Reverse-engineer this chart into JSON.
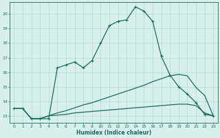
{
  "xlabel": "Humidex (Indice chaleur)",
  "bg_color": "#d8f0ec",
  "grid_color": "#b8ddd8",
  "line_color": "#1a6b5a",
  "xlim": [
    -0.5,
    23.5
  ],
  "ylim": [
    12.5,
    20.8
  ],
  "yticks": [
    13,
    14,
    15,
    16,
    17,
    18,
    19,
    20
  ],
  "xticks": [
    0,
    1,
    2,
    3,
    4,
    5,
    6,
    7,
    8,
    9,
    10,
    11,
    12,
    13,
    14,
    15,
    16,
    17,
    18,
    19,
    20,
    21,
    22,
    23
  ],
  "curve1_x": [
    0,
    1,
    2,
    3,
    4,
    5,
    6,
    7,
    8,
    9,
    10,
    11,
    12,
    13,
    14,
    15,
    16,
    17,
    18,
    19,
    20,
    21,
    22,
    23
  ],
  "curve1_y": [
    13.5,
    13.5,
    12.8,
    12.8,
    12.8,
    16.3,
    16.5,
    16.7,
    16.3,
    16.8,
    18.0,
    19.2,
    19.5,
    19.6,
    20.5,
    20.2,
    19.5,
    17.1,
    15.8,
    15.0,
    14.5,
    13.9,
    13.1,
    13.0
  ],
  "curve2_x": [
    0,
    1,
    2,
    3,
    4,
    5,
    6,
    7,
    8,
    9,
    10,
    11,
    12,
    13,
    14,
    15,
    16,
    17,
    18,
    19,
    20,
    21,
    22,
    23
  ],
  "curve2_y": [
    13.5,
    13.5,
    12.8,
    12.8,
    13.0,
    13.2,
    13.35,
    13.55,
    13.75,
    13.9,
    14.1,
    14.3,
    14.5,
    14.7,
    14.9,
    15.1,
    15.35,
    15.55,
    15.75,
    15.85,
    15.75,
    14.95,
    14.4,
    13.0
  ],
  "curve3_x": [
    0,
    1,
    2,
    3,
    4,
    5,
    6,
    7,
    8,
    9,
    10,
    11,
    12,
    13,
    14,
    15,
    16,
    17,
    18,
    19,
    20,
    21,
    22,
    23
  ],
  "curve3_y": [
    13.5,
    13.5,
    12.8,
    12.8,
    13.0,
    13.05,
    13.1,
    13.2,
    13.25,
    13.3,
    13.35,
    13.4,
    13.45,
    13.5,
    13.55,
    13.6,
    13.65,
    13.7,
    13.75,
    13.8,
    13.8,
    13.7,
    13.2,
    13.0
  ]
}
